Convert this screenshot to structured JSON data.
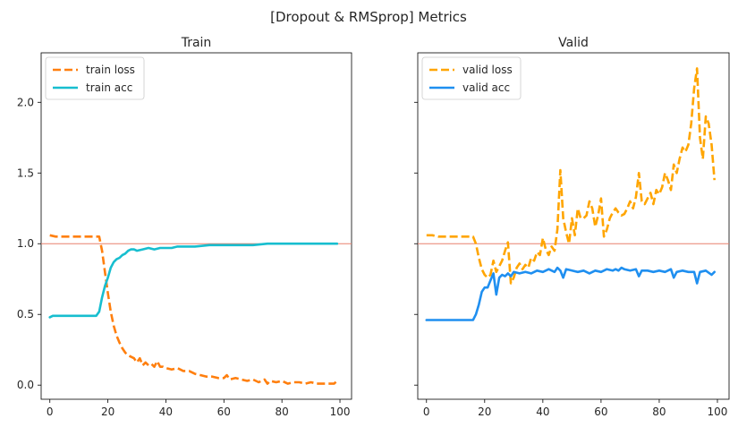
{
  "figure": {
    "suptitle": "[Dropout & RMSprop] Metrics"
  },
  "chart_data": [
    {
      "type": "line",
      "title": "Train",
      "xlabel": "",
      "ylabel": "",
      "xlim": [
        -3,
        104
      ],
      "ylim": [
        -0.1,
        2.35
      ],
      "xticks": [
        0,
        20,
        40,
        60,
        80,
        100
      ],
      "yticks": [
        0.0,
        0.5,
        1.0,
        1.5,
        2.0
      ],
      "xtick_labels": [
        "0",
        "20",
        "40",
        "60",
        "80",
        "100"
      ],
      "ytick_labels": [
        "0.0",
        "0.5",
        "1.0",
        "1.5",
        "2.0"
      ],
      "show_ytick_labels": true,
      "hline": {
        "y": 1.0,
        "color": "#e8806e"
      },
      "legend_position": "upper-left",
      "grid": false,
      "series": [
        {
          "name": "train loss",
          "color": "#ff7f0e",
          "style": "dashed",
          "x": [
            0,
            2,
            4,
            6,
            8,
            10,
            12,
            14,
            16,
            17,
            18,
            19,
            20,
            21,
            22,
            23,
            24,
            25,
            26,
            27,
            28,
            29,
            30,
            31,
            32,
            33,
            34,
            35,
            36,
            37,
            38,
            39,
            40,
            42,
            44,
            46,
            48,
            50,
            52,
            54,
            56,
            58,
            60,
            61,
            62,
            64,
            66,
            68,
            70,
            72,
            74,
            75,
            76,
            78,
            80,
            82,
            84,
            86,
            88,
            90,
            92,
            94,
            96,
            98,
            99
          ],
          "y": [
            1.06,
            1.05,
            1.05,
            1.05,
            1.05,
            1.05,
            1.05,
            1.05,
            1.05,
            1.05,
            0.95,
            0.8,
            0.65,
            0.52,
            0.42,
            0.35,
            0.3,
            0.26,
            0.23,
            0.21,
            0.2,
            0.19,
            0.16,
            0.19,
            0.14,
            0.16,
            0.14,
            0.15,
            0.13,
            0.17,
            0.13,
            0.13,
            0.12,
            0.11,
            0.12,
            0.1,
            0.1,
            0.08,
            0.07,
            0.06,
            0.06,
            0.05,
            0.05,
            0.07,
            0.04,
            0.05,
            0.04,
            0.03,
            0.04,
            0.02,
            0.04,
            0.01,
            0.03,
            0.02,
            0.03,
            0.01,
            0.02,
            0.02,
            0.01,
            0.02,
            0.01,
            0.01,
            0.01,
            0.01,
            0.03
          ]
        },
        {
          "name": "train acc",
          "color": "#17becf",
          "style": "solid",
          "x": [
            0,
            1,
            2,
            4,
            6,
            8,
            10,
            12,
            14,
            16,
            17,
            18,
            19,
            20,
            21,
            22,
            23,
            24,
            25,
            26,
            27,
            28,
            29,
            30,
            32,
            34,
            36,
            38,
            40,
            42,
            44,
            46,
            48,
            50,
            55,
            60,
            65,
            70,
            75,
            80,
            85,
            90,
            95,
            99
          ],
          "y": [
            0.48,
            0.49,
            0.49,
            0.49,
            0.49,
            0.49,
            0.49,
            0.49,
            0.49,
            0.49,
            0.52,
            0.62,
            0.7,
            0.76,
            0.83,
            0.87,
            0.89,
            0.9,
            0.92,
            0.93,
            0.95,
            0.96,
            0.96,
            0.95,
            0.96,
            0.97,
            0.96,
            0.97,
            0.97,
            0.97,
            0.98,
            0.98,
            0.98,
            0.98,
            0.99,
            0.99,
            0.99,
            0.99,
            1.0,
            1.0,
            1.0,
            1.0,
            1.0,
            1.0
          ]
        }
      ]
    },
    {
      "type": "line",
      "title": "Valid",
      "xlabel": "",
      "ylabel": "",
      "xlim": [
        -3,
        104
      ],
      "ylim": [
        -0.1,
        2.35
      ],
      "xticks": [
        0,
        20,
        40,
        60,
        80,
        100
      ],
      "yticks": [
        0.0,
        0.5,
        1.0,
        1.5,
        2.0
      ],
      "xtick_labels": [
        "0",
        "20",
        "40",
        "60",
        "80",
        "100"
      ],
      "ytick_labels": [
        "0.0",
        "0.5",
        "1.0",
        "1.5",
        "2.0"
      ],
      "show_ytick_labels": false,
      "hline": {
        "y": 1.0,
        "color": "#e8806e"
      },
      "legend_position": "upper-left",
      "grid": false,
      "series": [
        {
          "name": "valid loss",
          "color": "#ffa500",
          "style": "dashed",
          "x": [
            0,
            2,
            4,
            6,
            8,
            10,
            12,
            14,
            16,
            17,
            18,
            19,
            20,
            21,
            22,
            23,
            24,
            25,
            26,
            27,
            28,
            29,
            30,
            31,
            32,
            33,
            34,
            35,
            36,
            37,
            38,
            39,
            40,
            41,
            42,
            43,
            44,
            45,
            46,
            47,
            48,
            49,
            50,
            51,
            52,
            53,
            54,
            55,
            56,
            57,
            58,
            59,
            60,
            61,
            62,
            63,
            64,
            65,
            66,
            67,
            68,
            69,
            70,
            71,
            72,
            73,
            74,
            75,
            76,
            77,
            78,
            79,
            80,
            81,
            82,
            83,
            84,
            85,
            86,
            87,
            88,
            89,
            90,
            91,
            92,
            93,
            94,
            95,
            96,
            97,
            98,
            99
          ],
          "y": [
            1.06,
            1.06,
            1.05,
            1.05,
            1.05,
            1.05,
            1.05,
            1.05,
            1.05,
            1.0,
            0.9,
            0.82,
            0.78,
            0.76,
            0.78,
            0.88,
            0.8,
            0.84,
            0.88,
            0.95,
            1.01,
            0.72,
            0.76,
            0.83,
            0.86,
            0.82,
            0.85,
            0.83,
            0.9,
            0.88,
            0.94,
            0.92,
            1.04,
            0.96,
            0.92,
            0.98,
            0.95,
            1.1,
            1.52,
            1.18,
            1.08,
            1.0,
            1.18,
            1.06,
            1.25,
            1.18,
            1.18,
            1.2,
            1.3,
            1.25,
            1.12,
            1.2,
            1.32,
            1.05,
            1.1,
            1.18,
            1.22,
            1.25,
            1.22,
            1.2,
            1.21,
            1.25,
            1.3,
            1.25,
            1.33,
            1.5,
            1.3,
            1.28,
            1.32,
            1.36,
            1.28,
            1.38,
            1.35,
            1.4,
            1.5,
            1.45,
            1.38,
            1.56,
            1.5,
            1.6,
            1.68,
            1.65,
            1.7,
            1.85,
            2.1,
            2.24,
            1.75,
            1.6,
            1.9,
            1.85,
            1.7,
            1.45
          ]
        },
        {
          "name": "valid acc",
          "color": "#1f8ff0",
          "style": "solid",
          "x": [
            0,
            2,
            4,
            6,
            8,
            10,
            12,
            14,
            16,
            17,
            18,
            19,
            20,
            21,
            22,
            23,
            24,
            25,
            26,
            27,
            28,
            29,
            30,
            32,
            34,
            36,
            38,
            40,
            42,
            44,
            45,
            46,
            47,
            48,
            50,
            52,
            54,
            56,
            58,
            60,
            62,
            64,
            65,
            66,
            67,
            68,
            70,
            72,
            73,
            74,
            76,
            78,
            80,
            82,
            84,
            85,
            86,
            88,
            90,
            92,
            93,
            94,
            96,
            98,
            99
          ],
          "y": [
            0.46,
            0.46,
            0.46,
            0.46,
            0.46,
            0.46,
            0.46,
            0.46,
            0.46,
            0.5,
            0.57,
            0.66,
            0.69,
            0.69,
            0.74,
            0.79,
            0.64,
            0.76,
            0.78,
            0.77,
            0.79,
            0.77,
            0.8,
            0.79,
            0.8,
            0.79,
            0.81,
            0.8,
            0.82,
            0.8,
            0.83,
            0.81,
            0.76,
            0.82,
            0.81,
            0.8,
            0.81,
            0.79,
            0.81,
            0.8,
            0.82,
            0.81,
            0.82,
            0.81,
            0.83,
            0.82,
            0.81,
            0.82,
            0.77,
            0.81,
            0.81,
            0.8,
            0.81,
            0.8,
            0.82,
            0.76,
            0.8,
            0.81,
            0.8,
            0.8,
            0.72,
            0.8,
            0.81,
            0.78,
            0.8
          ]
        }
      ]
    }
  ]
}
